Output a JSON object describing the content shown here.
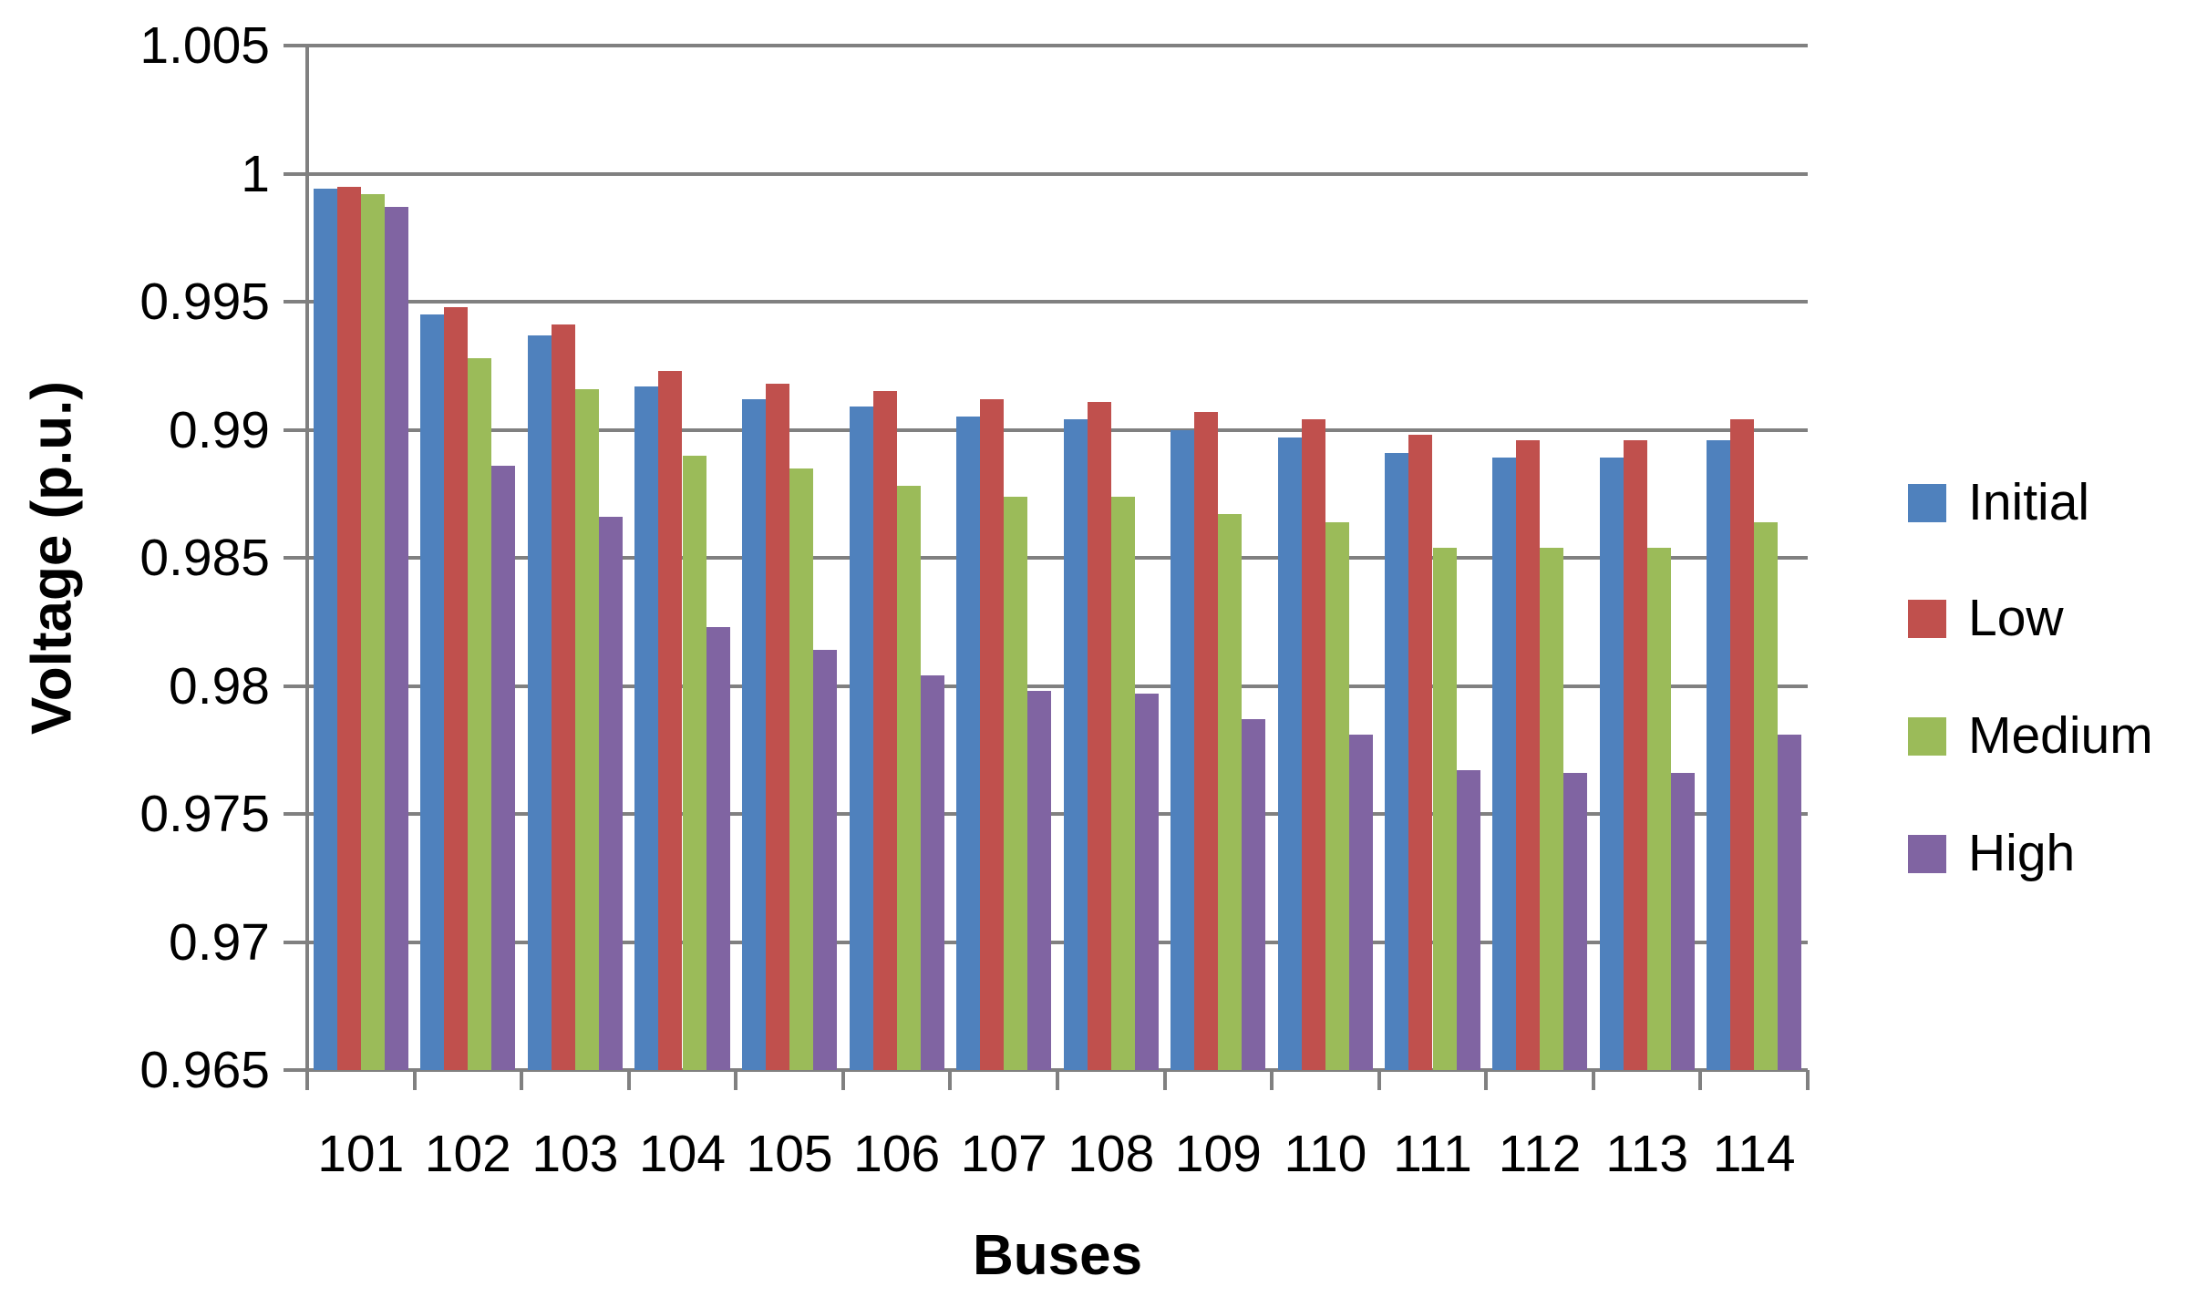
{
  "chart_data": {
    "type": "bar",
    "title": "",
    "xlabel": "Buses",
    "ylabel": "Voltage (p.u.)",
    "ymin": 0.965,
    "ymax": 1.005,
    "ytick_step": 0.005,
    "yticklabels": [
      "1.005",
      "1",
      "0.995",
      "0.99",
      "0.985",
      "0.98",
      "0.975",
      "0.97",
      "0.965"
    ],
    "grid": true,
    "legend_position": "right",
    "gridline_color": "#808080",
    "text_color": "#000000",
    "background_color": "#FFFFFF",
    "categories": [
      "101",
      "102",
      "103",
      "104",
      "105",
      "106",
      "107",
      "108",
      "109",
      "110",
      "111",
      "112",
      "113",
      "114"
    ],
    "series": [
      {
        "name": "Initial",
        "color": "#4F81BD",
        "values": [
          0.9994,
          0.9945,
          0.9937,
          0.9917,
          0.9912,
          0.9909,
          0.9905,
          0.9904,
          0.99,
          0.9897,
          0.9891,
          0.9889,
          0.9889,
          0.9896
        ]
      },
      {
        "name": "Low",
        "color": "#C0504D",
        "values": [
          0.9995,
          0.9948,
          0.9941,
          0.9923,
          0.9918,
          0.9915,
          0.9912,
          0.9911,
          0.9907,
          0.9904,
          0.9898,
          0.9896,
          0.9896,
          0.9904
        ]
      },
      {
        "name": "Medium",
        "color": "#9BBB59",
        "values": [
          0.9992,
          0.9928,
          0.9916,
          0.989,
          0.9885,
          0.9878,
          0.9874,
          0.9874,
          0.9867,
          0.9864,
          0.9854,
          0.9854,
          0.9854,
          0.9864
        ]
      },
      {
        "name": "High",
        "color": "#8064A2",
        "values": [
          0.9987,
          0.9886,
          0.9866,
          0.9823,
          0.9814,
          0.9804,
          0.9798,
          0.9797,
          0.9787,
          0.9781,
          0.9767,
          0.9766,
          0.9766,
          0.9781
        ]
      }
    ]
  }
}
